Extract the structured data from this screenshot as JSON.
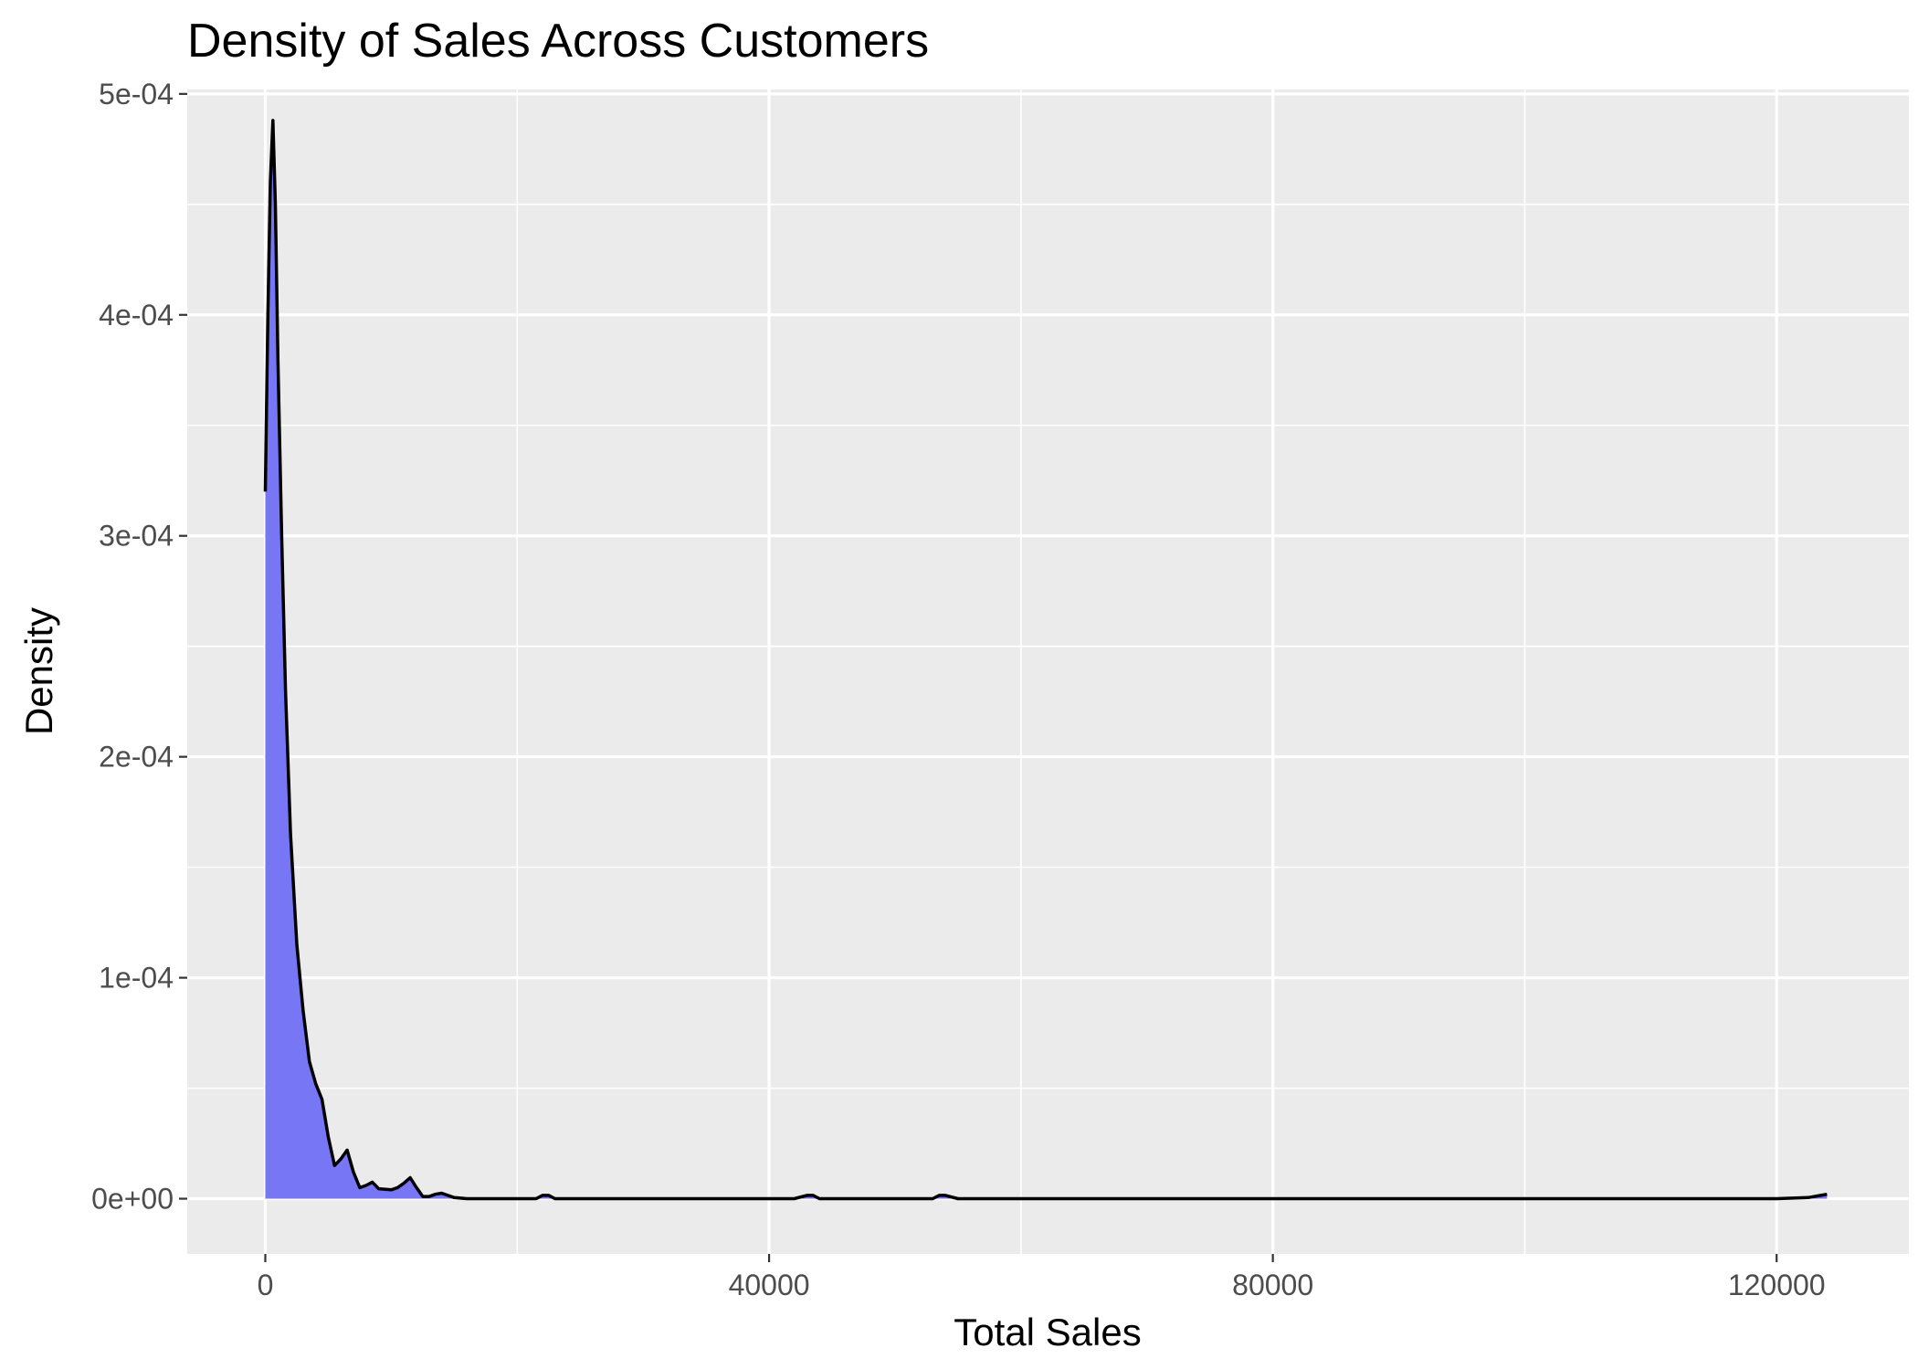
{
  "chart_data": {
    "type": "area",
    "title": "Density of Sales Across Customers",
    "xlabel": "Total Sales",
    "ylabel": "Density",
    "xlim": [
      -6200,
      130500
    ],
    "ylim": [
      -2.5e-05,
      0.000502
    ],
    "x_ticks": [
      0,
      40000,
      80000,
      120000
    ],
    "x_tick_labels": [
      "0",
      "40000",
      "80000",
      "120000"
    ],
    "y_ticks": [
      0,
      0.0001,
      0.0002,
      0.0003,
      0.0004,
      0.0005
    ],
    "y_tick_labels": [
      "0e+00",
      "1e-04",
      "2e-04",
      "3e-04",
      "4e-04",
      "5e-04"
    ],
    "grid": true,
    "legend": "none",
    "colors": {
      "panel": "#ebebeb",
      "grid": "#ffffff",
      "fill": "#7777f5",
      "line": "#000000",
      "tick": "#333333"
    },
    "series": [
      {
        "x": [
          0,
          200,
          400,
          600,
          800,
          1000,
          1300,
          1600,
          2000,
          2500,
          3000,
          3500,
          4000,
          4500,
          5000,
          5500,
          6000,
          6500,
          7000,
          7500,
          8000,
          8500,
          9000,
          10000,
          10500,
          11000,
          11500,
          12000,
          12500,
          13000,
          13500,
          14000,
          14500,
          15000,
          16000,
          20000,
          21500,
          22000,
          22500,
          23000,
          24000,
          30000,
          42000,
          43000,
          43500,
          44000,
          45000,
          52000,
          53000,
          53500,
          54000,
          55000,
          60000,
          80000,
          100000,
          120000,
          122500,
          123500,
          124000
        ],
        "y": [
          0.00032,
          0.0004,
          0.00046,
          0.000488,
          0.00045,
          0.00038,
          0.0003,
          0.00023,
          0.000165,
          0.000115,
          8.5e-05,
          6.2e-05,
          5.2e-05,
          4.5e-05,
          2.8e-05,
          1.5e-05,
          1.8e-05,
          2.2e-05,
          1.2e-05,
          5e-06,
          6e-06,
          7.5e-06,
          4.5e-06,
          4e-06,
          5e-06,
          7e-06,
          9.5e-06,
          5e-06,
          1e-06,
          1e-06,
          2e-06,
          2.5e-06,
          1.5e-06,
          5e-07,
          0,
          0,
          0,
          1.5e-06,
          1.5e-06,
          0,
          0,
          0,
          0,
          1.5e-06,
          1.5e-06,
          0,
          0,
          0,
          0,
          1.5e-06,
          1.5e-06,
          0,
          0,
          0,
          0,
          0,
          5e-07,
          1.5e-06,
          2e-06
        ]
      }
    ]
  }
}
